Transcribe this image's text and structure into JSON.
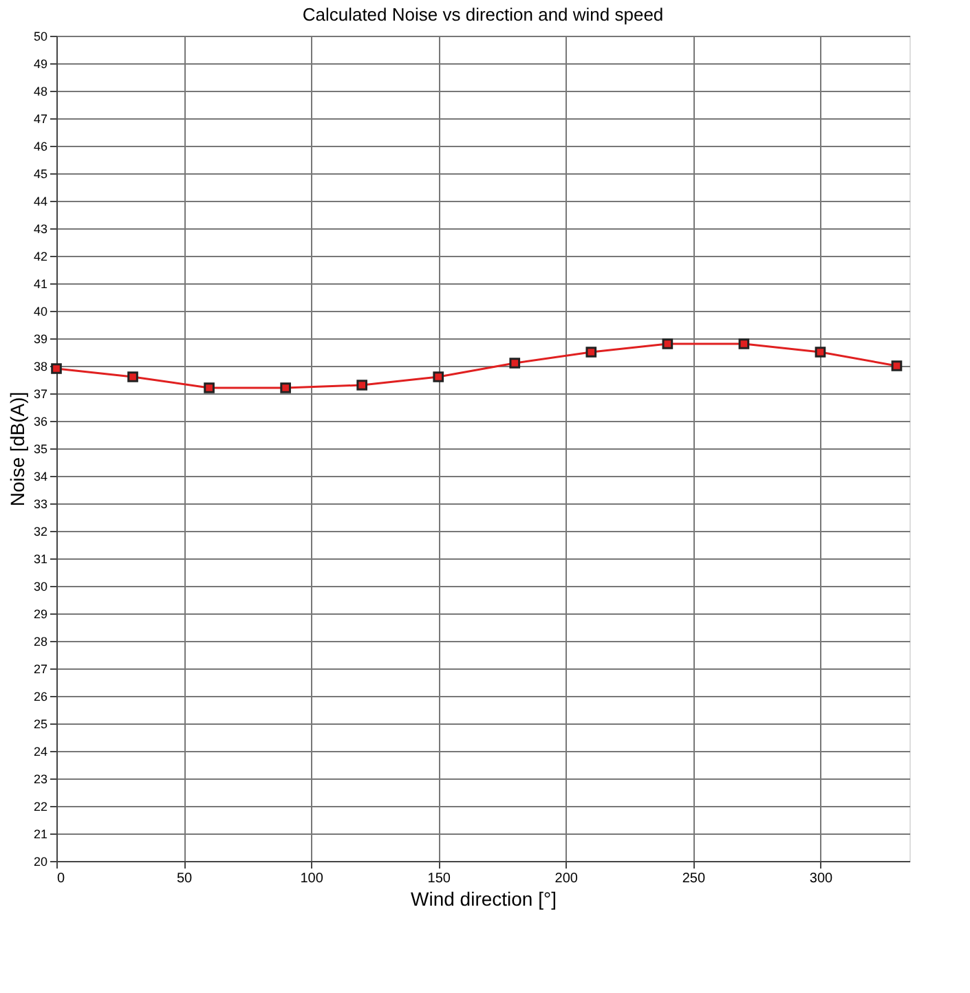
{
  "chart_data": {
    "type": "line",
    "title": "Calculated Noise vs direction and wind speed",
    "xlabel": "Wind direction [°]",
    "ylabel": "Noise [dB(A)]",
    "x": [
      0,
      30,
      60,
      90,
      120,
      150,
      180,
      210,
      240,
      270,
      300,
      330
    ],
    "series": [
      {
        "color": "#e02020",
        "values": [
          37.9,
          37.6,
          37.2,
          37.2,
          37.3,
          37.6,
          38.1,
          38.5,
          38.8,
          38.8,
          38.5,
          38.0
        ]
      }
    ],
    "xlim": [
      0,
      335
    ],
    "xticks": [
      0,
      50,
      100,
      150,
      200,
      250,
      300
    ],
    "ylim": [
      20,
      50
    ],
    "yticks": [
      20,
      21,
      22,
      23,
      24,
      25,
      26,
      27,
      28,
      29,
      30,
      31,
      32,
      33,
      34,
      35,
      36,
      37,
      38,
      39,
      40,
      41,
      42,
      43,
      44,
      45,
      46,
      47,
      48,
      49,
      50
    ],
    "grid": true,
    "marker": "square",
    "line_style": "solid",
    "legend": false
  }
}
